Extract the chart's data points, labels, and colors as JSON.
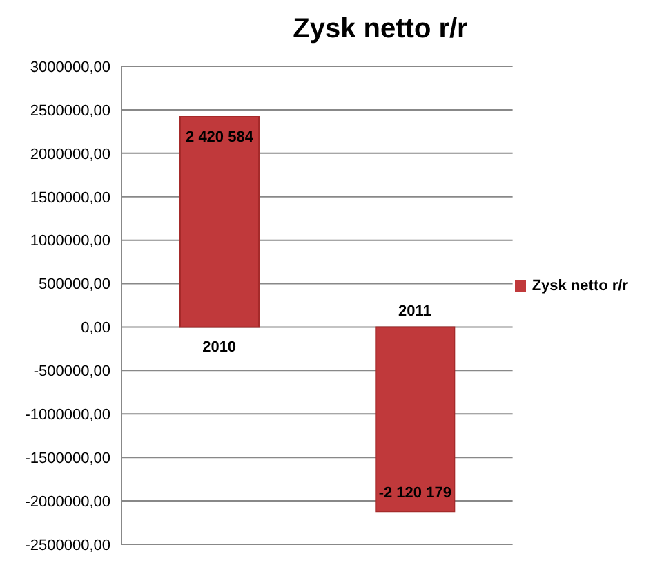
{
  "chart_data": {
    "type": "bar",
    "title": "Zysk netto r/r",
    "categories": [
      "2010",
      "2011"
    ],
    "series": [
      {
        "name": "Zysk netto r/r",
        "color": "#c0393b",
        "values": [
          2420584,
          -2120179
        ],
        "value_labels": [
          "2 420 584",
          "-2 120 179"
        ]
      }
    ],
    "ylim": [
      -2500000,
      3000000
    ],
    "yticks": [
      {
        "value": -2500000,
        "label": "-2500000,00"
      },
      {
        "value": -2000000,
        "label": "-2000000,00"
      },
      {
        "value": -1500000,
        "label": "-1500000,00"
      },
      {
        "value": -1000000,
        "label": "-1000000,00"
      },
      {
        "value": -500000,
        "label": "-500000,00"
      },
      {
        "value": 0,
        "label": "0,00"
      },
      {
        "value": 500000,
        "label": "500000,00"
      },
      {
        "value": 1000000,
        "label": "1000000,00"
      },
      {
        "value": 1500000,
        "label": "1500000,00"
      },
      {
        "value": 2000000,
        "label": "2000000,00"
      },
      {
        "value": 2500000,
        "label": "2500000,00"
      },
      {
        "value": 3000000,
        "label": "3000000,00"
      }
    ],
    "grid": "y",
    "legend": "right"
  }
}
